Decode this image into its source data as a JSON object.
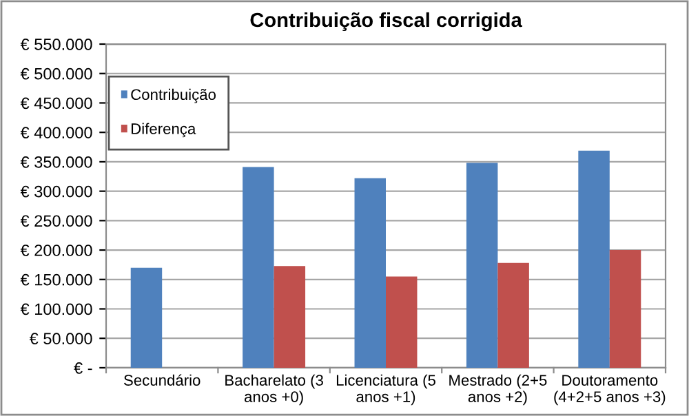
{
  "chart_data": {
    "type": "bar",
    "title": "Contribuição fiscal corrigida",
    "categories": [
      "Secundário",
      "Bacharelato (3\nanos +0)",
      "Licenciatura (5\nanos +1)",
      "Mestrado (2+5\nanos +2)",
      "Doutoramento\n(4+2+5 anos +3)"
    ],
    "series": [
      {
        "name": "Contribuição",
        "color": "#4f81bd",
        "values": [
          170000,
          341000,
          322000,
          348000,
          369000
        ]
      },
      {
        "name": "Diferença",
        "color": "#c0504d",
        "values": [
          null,
          173000,
          155000,
          178000,
          200000
        ]
      }
    ],
    "ylim": [
      0,
      550000
    ],
    "yticks": [
      {
        "value": 0,
        "label": "€ -"
      },
      {
        "value": 50000,
        "label": "€ 50.000"
      },
      {
        "value": 100000,
        "label": "€ 100.000"
      },
      {
        "value": 150000,
        "label": "€ 150.000"
      },
      {
        "value": 200000,
        "label": "€ 200.000"
      },
      {
        "value": 250000,
        "label": "€ 250.000"
      },
      {
        "value": 300000,
        "label": "€ 300.000"
      },
      {
        "value": 350000,
        "label": "€ 350.000"
      },
      {
        "value": 400000,
        "label": "€ 400.000"
      },
      {
        "value": 450000,
        "label": "€ 450.000"
      },
      {
        "value": 500000,
        "label": "€ 500.000"
      },
      {
        "value": 550000,
        "label": "€ 550.000"
      }
    ],
    "grid": "y",
    "legend": "top left"
  }
}
